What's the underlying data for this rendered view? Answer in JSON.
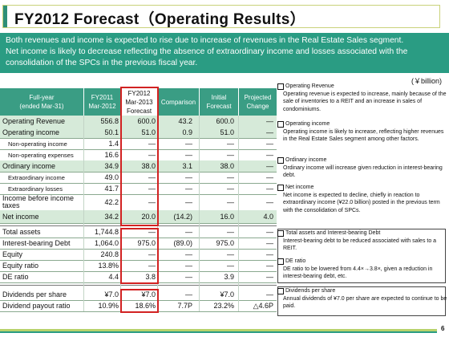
{
  "title": "FY2012 Forecast（Operating Results）",
  "banner": {
    "lines": [
      "Both revenues and income is expected to rise due to increase of revenues in the Real Estate Sales segment.",
      "Net income is likely to decrease reflecting the absence of extraordinary income and losses associated with the",
      "consolidation of the SPCs in the previous fiscal year."
    ]
  },
  "unit": "(￥billion)",
  "table": {
    "headers": {
      "label": [
        "Full-year",
        "(ended Mar-31)"
      ],
      "fy2011": [
        "FY2011",
        "Mar-2012"
      ],
      "fy2012": [
        "FY2012",
        "Mar-2013",
        "Forecast"
      ],
      "comparison": "Comparison",
      "initial": [
        "Initial",
        "Forecast"
      ],
      "projected": [
        "Projected",
        "Change"
      ]
    },
    "rows": [
      {
        "label": "Operating Revenue",
        "fy2011": "556.8",
        "fy2012": "600.0",
        "comp": "43.2",
        "initial": "600.0",
        "proj": "―"
      },
      {
        "label": "Operating income",
        "fy2011": "50.1",
        "fy2012": "51.0",
        "comp": "0.9",
        "initial": "51.0",
        "proj": "―"
      },
      {
        "label": "Non-operating income",
        "fy2011": "1.4",
        "fy2012": "―",
        "comp": "―",
        "initial": "―",
        "proj": "―"
      },
      {
        "label": "Non-operating expenses",
        "fy2011": "16.6",
        "fy2012": "―",
        "comp": "―",
        "initial": "―",
        "proj": "―"
      },
      {
        "label": "Ordinary income",
        "fy2011": "34.9",
        "fy2012": "38.0",
        "comp": "3.1",
        "initial": "38.0",
        "proj": "―"
      },
      {
        "label": "Extraordinary income",
        "fy2011": "49.0",
        "fy2012": "―",
        "comp": "―",
        "initial": "―",
        "proj": "―"
      },
      {
        "label": "Extraordinary losses",
        "fy2011": "41.7",
        "fy2012": "―",
        "comp": "―",
        "initial": "―",
        "proj": "―"
      },
      {
        "label": "Income before income taxes",
        "fy2011": "42.2",
        "fy2012": "―",
        "comp": "―",
        "initial": "―",
        "proj": "―"
      },
      {
        "label": "Net income",
        "fy2011": "34.2",
        "fy2012": "20.0",
        "comp": "(14.2)",
        "initial": "16.0",
        "proj": "4.0"
      },
      {
        "label": "Total assets",
        "fy2011": "1,744.8",
        "fy2012": "―",
        "comp": "―",
        "initial": "―",
        "proj": "―"
      },
      {
        "label": "Interest-bearing Debt",
        "fy2011": "1,064.0",
        "fy2012": "975.0",
        "comp": "(89.0)",
        "initial": "975.0",
        "proj": "―"
      },
      {
        "label": "Equity",
        "fy2011": "240.8",
        "fy2012": "―",
        "comp": "―",
        "initial": "―",
        "proj": "―"
      },
      {
        "label": "Equity ratio",
        "fy2011": "13.8%",
        "fy2012": "―",
        "comp": "―",
        "initial": "―",
        "proj": "―"
      },
      {
        "label": "DE ratio",
        "fy2011": "4.4",
        "fy2012": "3.8",
        "comp": "―",
        "initial": "3.9",
        "proj": "―"
      },
      {
        "label": "Dividends per share",
        "fy2011": "¥7.0",
        "fy2012": "¥7.0",
        "comp": "―",
        "initial": "¥7.0",
        "proj": "―"
      },
      {
        "label": "Dividend payout ratio",
        "fy2011": "10.9%",
        "fy2012": "18.6%",
        "comp": "7.7P",
        "initial": "23.2%",
        "proj": "△4.6P"
      }
    ]
  },
  "notes": [
    {
      "head": "Operating Revenue",
      "body": "Operating revenue is expected to increase, mainly because of the sale of inventories to a REIT and an increase in sales of condominiums."
    },
    {
      "head": "Operating income",
      "body": "Operating income is likely to increase, reflecting higher revenues in the Real Estate Sales segment among other factors."
    },
    {
      "head": "Ordinary income",
      "body": "Ordinary income will increase given reduction in interest-bearing debt."
    },
    {
      "head": "Net income",
      "body": "Net income is expected to decline, chiefly in reaction to extraordinary income (¥22.0 billion) posted in the previous term with the consolidation of SPCs."
    },
    {
      "head": "Total assets and Interest-bearing Debt",
      "body": "Interest-bearing debt to be reduced associated with sales to a REIT."
    },
    {
      "head": "DE ratio",
      "body": "DE ratio to be lowered from 4.4×→3.8×, given a reduction in interest-bearing debt, etc."
    },
    {
      "head": "Dividends per share",
      "body": "Annual dividends of ¥7.0 per share are expected to continue to be paid."
    }
  ],
  "page_number": "6"
}
